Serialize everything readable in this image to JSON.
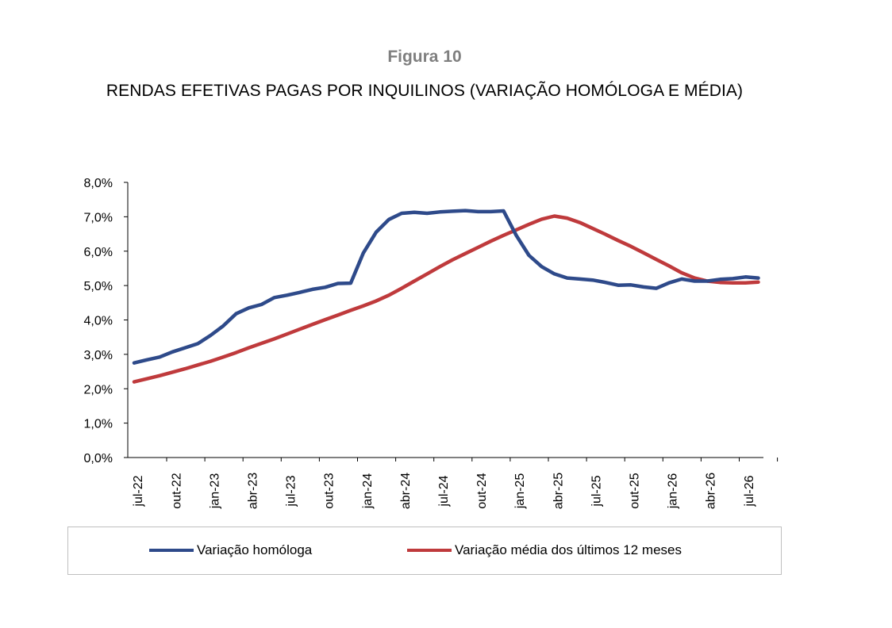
{
  "figure_label": "Figura 10",
  "colors": {
    "series1": "#2e4a8a",
    "series2": "#bf3a3c",
    "axis": "#000000",
    "figure_label": "#7f7f7f"
  },
  "chart_data": {
    "type": "line",
    "title": "RENDAS EFETIVAS PAGAS POR INQUILINOS (VARIAÇÃO HOMÓLOGA E MÉDIA)",
    "xlabel": "",
    "ylabel": "",
    "ylim": [
      0,
      8
    ],
    "y_ticks": [
      "0,0%",
      "1,0%",
      "2,0%",
      "3,0%",
      "4,0%",
      "5,0%",
      "6,0%",
      "7,0%",
      "8,0%"
    ],
    "x_ticks": [
      "jul-22",
      "out-22",
      "jan-23",
      "abr-23",
      "jul-23",
      "out-23",
      "jan-24",
      "abr-24",
      "jul-24",
      "out-24",
      "jan-25",
      "abr-25",
      "jul-25",
      "out-25",
      "jan-26",
      "abr-26",
      "jul-26"
    ],
    "x": [
      "jul-22",
      "ago-22",
      "set-22",
      "out-22",
      "nov-22",
      "dez-22",
      "jan-23",
      "fev-23",
      "mar-23",
      "abr-23",
      "mai-23",
      "jun-23",
      "jul-23",
      "ago-23",
      "set-23",
      "out-23",
      "nov-23",
      "dez-23",
      "jan-24",
      "fev-24",
      "mar-24",
      "abr-24",
      "mai-24",
      "jun-24",
      "jul-24",
      "ago-24",
      "set-24",
      "out-24",
      "nov-24",
      "dez-24",
      "jan-25",
      "fev-25",
      "mar-25",
      "abr-25",
      "mai-25",
      "jun-25",
      "jul-25",
      "ago-25",
      "set-25",
      "out-25",
      "nov-25",
      "dez-25",
      "jan-26",
      "fev-26",
      "mar-26",
      "abr-26",
      "mai-26",
      "jun-26",
      "jul-26",
      "ago-26"
    ],
    "grid": false,
    "legend_position": "bottom",
    "series": [
      {
        "name": "Variação homóloga",
        "values": [
          2.75,
          2.84,
          2.92,
          3.07,
          3.19,
          3.31,
          3.55,
          3.83,
          4.18,
          4.35,
          4.45,
          4.65,
          4.72,
          4.8,
          4.89,
          4.95,
          5.06,
          5.07,
          5.95,
          6.55,
          6.92,
          7.1,
          7.13,
          7.1,
          7.14,
          7.16,
          7.18,
          7.15,
          7.15,
          7.17,
          6.46,
          5.88,
          5.55,
          5.34,
          5.22,
          5.19,
          5.16,
          5.09,
          5.01,
          5.02,
          4.96,
          4.92,
          5.08,
          5.19,
          5.13,
          5.13,
          5.18,
          5.2,
          5.25,
          5.22
        ]
      },
      {
        "name": "Variação média dos últimos 12 meses",
        "values": [
          2.2,
          2.29,
          2.38,
          2.48,
          2.58,
          2.69,
          2.8,
          2.92,
          3.05,
          3.19,
          3.32,
          3.45,
          3.59,
          3.73,
          3.87,
          4.01,
          4.14,
          4.28,
          4.41,
          4.55,
          4.72,
          4.92,
          5.13,
          5.34,
          5.55,
          5.75,
          5.93,
          6.11,
          6.29,
          6.46,
          6.62,
          6.78,
          6.93,
          7.02,
          6.96,
          6.83,
          6.66,
          6.49,
          6.31,
          6.14,
          5.95,
          5.76,
          5.57,
          5.37,
          5.22,
          5.13,
          5.09,
          5.08,
          5.08,
          5.1
        ]
      }
    ]
  }
}
